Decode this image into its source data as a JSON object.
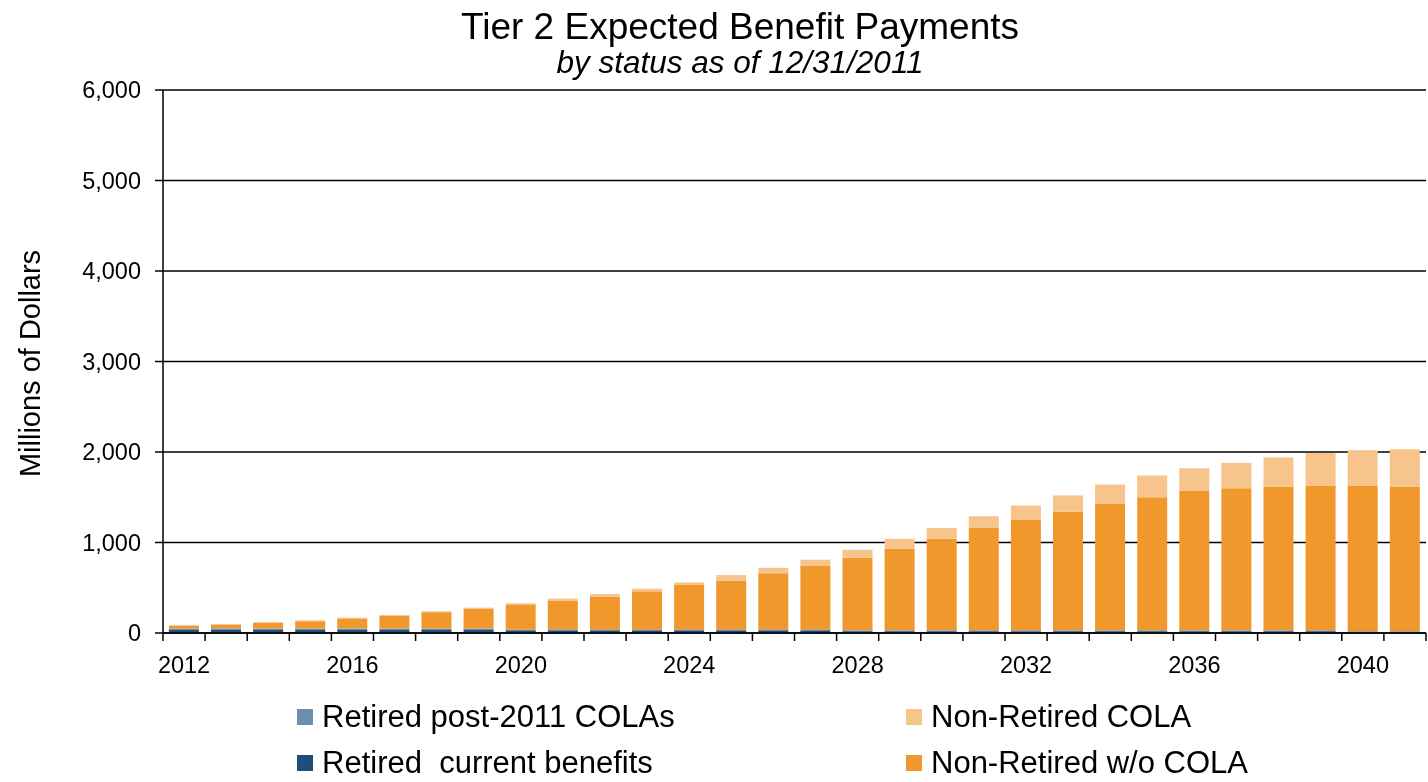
{
  "chart_data": {
    "type": "bar",
    "title": "Tier 2 Expected Benefit Payments",
    "subtitle": "by status as of 12/31/2011",
    "ylabel": "Millions of Dollars",
    "categories": [
      "2012",
      null,
      null,
      null,
      "2016",
      null,
      null,
      null,
      "2020",
      null,
      null,
      null,
      "2024",
      null,
      null,
      null,
      "2028",
      null,
      null,
      null,
      "2032",
      null,
      null,
      null,
      "2036",
      null,
      null,
      null,
      "2040",
      null
    ],
    "stacked": true,
    "series": [
      {
        "name": "Retired  current benefits",
        "color": "#1f4e79",
        "values": [
          40,
          40,
          40,
          40,
          40,
          40,
          40,
          40,
          30,
          30,
          30,
          30,
          30,
          30,
          30,
          30,
          20,
          20,
          20,
          20,
          20,
          20,
          20,
          20,
          20,
          20,
          20,
          20,
          10,
          10
        ]
      },
      {
        "name": "Retired post-2011 COLAs",
        "color": "#6a8fb0",
        "values": [
          10,
          10,
          10,
          10,
          10,
          10,
          10,
          10,
          10,
          10,
          10,
          10,
          10,
          10,
          10,
          10,
          10,
          10,
          10,
          10,
          10,
          10,
          10,
          10,
          10,
          10,
          10,
          10,
          10,
          10
        ]
      },
      {
        "name": "Non-Retired w/o COLA",
        "color": "#f0982c",
        "values": [
          30,
          40,
          60,
          80,
          110,
          140,
          180,
          220,
          270,
          320,
          360,
          420,
          490,
          540,
          620,
          700,
          800,
          900,
          1010,
          1130,
          1220,
          1310,
          1400,
          1470,
          1540,
          1570,
          1590,
          1600,
          1610,
          1600
        ]
      },
      {
        "name": "Non-Retired COLA",
        "color": "#f7c48c",
        "values": [
          10,
          10,
          10,
          10,
          10,
          10,
          10,
          10,
          20,
          20,
          30,
          30,
          30,
          60,
          60,
          70,
          90,
          110,
          120,
          130,
          160,
          180,
          210,
          240,
          250,
          280,
          320,
          360,
          390,
          410
        ]
      }
    ],
    "ylim": [
      0,
      6000
    ],
    "yticks": [
      0,
      {
        "value": 1000,
        "label": "1,000"
      },
      {
        "value": 2000,
        "label": "2,000"
      },
      {
        "value": 3000,
        "label": "3,000"
      },
      {
        "value": 4000,
        "label": "4,000"
      },
      {
        "value": 5000,
        "label": "5,000"
      },
      {
        "value": 6000,
        "label": "6,000"
      }
    ],
    "grid": "y",
    "legend": "bottom"
  }
}
